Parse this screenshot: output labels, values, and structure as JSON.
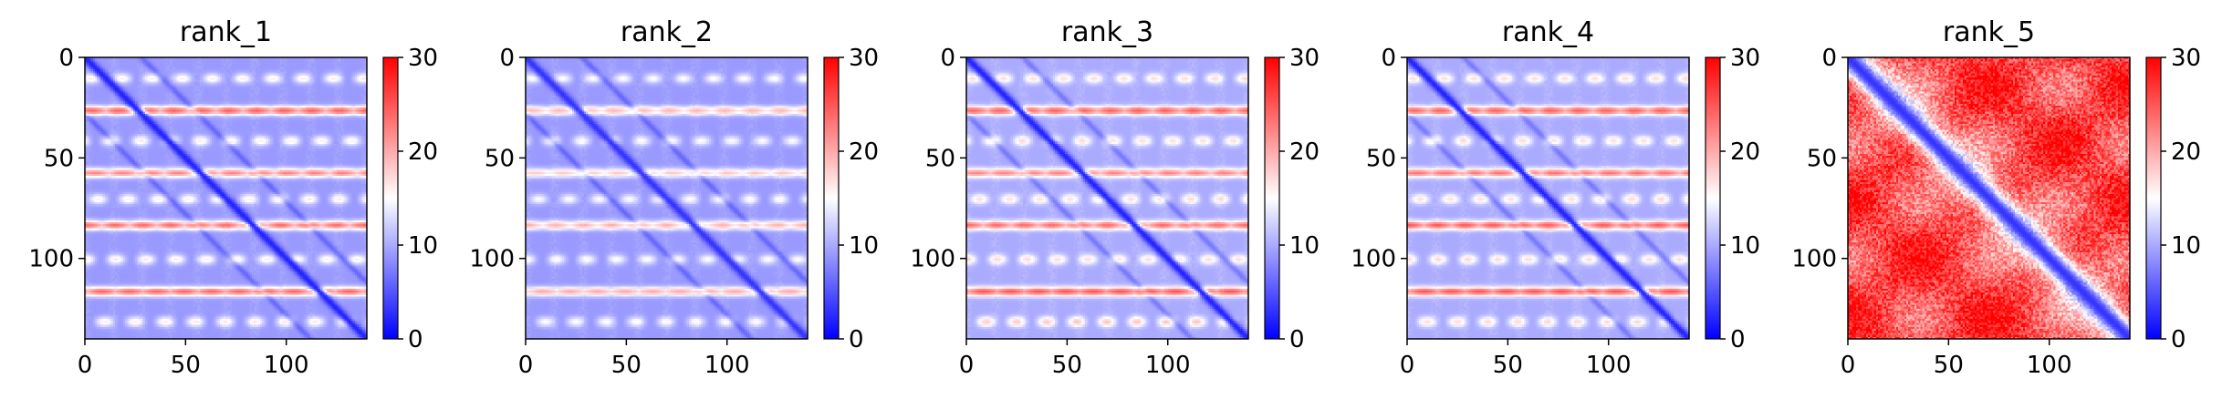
{
  "chart_data": [
    {
      "type": "heatmap",
      "title": "rank_1",
      "matrix_size": 140,
      "x_ticks": [
        0,
        50,
        100
      ],
      "y_ticks": [
        0,
        50,
        100
      ],
      "colorbar": {
        "min": 0,
        "max": 30,
        "ticks": [
          0,
          10,
          20,
          30
        ],
        "colors": [
          "#0000ff",
          "#ffffff",
          "#ff0000"
        ]
      },
      "diagonal_value": 2,
      "background_value": 9,
      "hot_rows": [
        [
          26,
          24
        ],
        [
          57,
          22
        ],
        [
          83,
          23
        ],
        [
          116,
          24
        ]
      ],
      "warm_rows": [
        [
          10,
          16
        ],
        [
          41,
          16
        ],
        [
          70,
          16
        ],
        [
          100,
          16
        ],
        [
          131,
          16
        ]
      ]
    },
    {
      "type": "heatmap",
      "title": "rank_2",
      "matrix_size": 140,
      "x_ticks": [
        0,
        50,
        100
      ],
      "y_ticks": [
        0,
        50,
        100
      ],
      "colorbar": {
        "min": 0,
        "max": 30,
        "ticks": [
          0,
          10,
          20,
          30
        ],
        "colors": [
          "#0000ff",
          "#ffffff",
          "#ff0000"
        ]
      },
      "diagonal_value": 3,
      "background_value": 9,
      "hot_rows": [
        [
          26,
          19
        ],
        [
          57,
          18
        ],
        [
          83,
          19
        ],
        [
          116,
          20
        ]
      ],
      "warm_rows": [
        [
          10,
          15
        ],
        [
          41,
          15
        ],
        [
          70,
          15
        ],
        [
          100,
          15
        ],
        [
          131,
          15
        ]
      ]
    },
    {
      "type": "heatmap",
      "title": "rank_3",
      "matrix_size": 140,
      "x_ticks": [
        0,
        50,
        100
      ],
      "y_ticks": [
        0,
        50,
        100
      ],
      "colorbar": {
        "min": 0,
        "max": 30,
        "ticks": [
          0,
          10,
          20,
          30
        ],
        "colors": [
          "#0000ff",
          "#ffffff",
          "#ff0000"
        ]
      },
      "diagonal_value": 2,
      "background_value": 10,
      "hot_rows": [
        [
          26,
          24
        ],
        [
          57,
          22
        ],
        [
          83,
          23
        ],
        [
          116,
          25
        ]
      ],
      "warm_rows": [
        [
          10,
          17
        ],
        [
          41,
          17
        ],
        [
          70,
          17
        ],
        [
          100,
          17
        ],
        [
          131,
          18
        ]
      ]
    },
    {
      "type": "heatmap",
      "title": "rank_4",
      "matrix_size": 140,
      "x_ticks": [
        0,
        50,
        100
      ],
      "y_ticks": [
        0,
        50,
        100
      ],
      "colorbar": {
        "min": 0,
        "max": 30,
        "ticks": [
          0,
          10,
          20,
          30
        ],
        "colors": [
          "#0000ff",
          "#ffffff",
          "#ff0000"
        ]
      },
      "diagonal_value": 2,
      "background_value": 10,
      "hot_rows": [
        [
          26,
          24
        ],
        [
          57,
          23
        ],
        [
          83,
          24
        ],
        [
          116,
          25
        ]
      ],
      "warm_rows": [
        [
          10,
          17
        ],
        [
          41,
          17
        ],
        [
          70,
          17
        ],
        [
          100,
          17
        ],
        [
          131,
          17
        ]
      ]
    },
    {
      "type": "heatmap",
      "title": "rank_5",
      "matrix_size": 140,
      "x_ticks": [
        0,
        50,
        100
      ],
      "y_ticks": [
        0,
        50,
        100
      ],
      "colorbar": {
        "min": 0,
        "max": 30,
        "ticks": [
          0,
          10,
          20,
          30
        ],
        "colors": [
          "#0000ff",
          "#ffffff",
          "#ff0000"
        ]
      },
      "diagonal_value": 3,
      "background_value": 26,
      "hot_rows": [],
      "warm_rows": []
    }
  ]
}
